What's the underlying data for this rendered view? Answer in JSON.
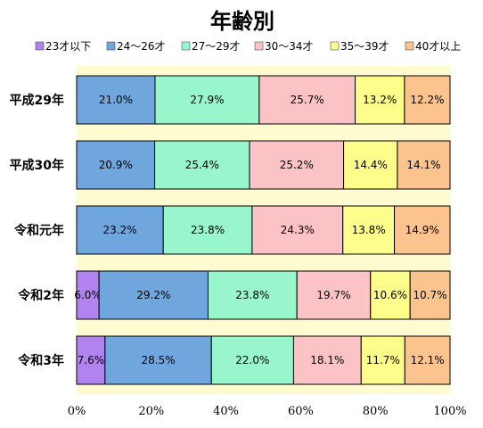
{
  "chart_data": {
    "type": "bar",
    "orientation": "horizontal",
    "stacked": true,
    "percent": true,
    "title": "年齢別",
    "categories": [
      "平成29年",
      "平成30年",
      "令和元年",
      "令和2年",
      "令和3年"
    ],
    "series": [
      {
        "name": "23才以下",
        "color": "#b183ee",
        "values": [
          0,
          0,
          0,
          6.0,
          7.6
        ],
        "labels": [
          "",
          "",
          "",
          "6.0%",
          "7.6%"
        ]
      },
      {
        "name": "24～26才",
        "color": "#6ea6dd",
        "values": [
          21.0,
          20.9,
          23.2,
          29.2,
          28.5
        ],
        "labels": [
          "21.0%",
          "20.9%",
          "23.2%",
          "29.2%",
          "28.5%"
        ]
      },
      {
        "name": "27～29才",
        "color": "#99f5cc",
        "values": [
          27.9,
          25.4,
          23.8,
          23.8,
          22.0
        ],
        "labels": [
          "27.9%",
          "25.4%",
          "23.8%",
          "23.8%",
          "22.0%"
        ]
      },
      {
        "name": "30～34才",
        "color": "#fcc3c7",
        "values": [
          25.7,
          25.2,
          24.3,
          19.7,
          18.1
        ],
        "labels": [
          "25.7%",
          "25.2%",
          "24.3%",
          "19.7%",
          "18.1%"
        ]
      },
      {
        "name": "35～39才",
        "color": "#fdfd8c",
        "values": [
          13.2,
          14.4,
          13.8,
          10.6,
          11.7
        ],
        "labels": [
          "13.2%",
          "14.4%",
          "13.8%",
          "10.6%",
          "11.7%"
        ]
      },
      {
        "name": "40才以上",
        "color": "#fbc48f",
        "values": [
          12.2,
          14.1,
          14.9,
          10.7,
          12.1
        ],
        "labels": [
          "12.2%",
          "14.1%",
          "14.9%",
          "10.7%",
          "12.1%"
        ]
      }
    ],
    "xlim": [
      0,
      100
    ],
    "ticks": [
      "0%",
      "20%",
      "40%",
      "60%",
      "80%",
      "100%"
    ],
    "plot_background": "#fffbd0",
    "legend_position": "top"
  }
}
